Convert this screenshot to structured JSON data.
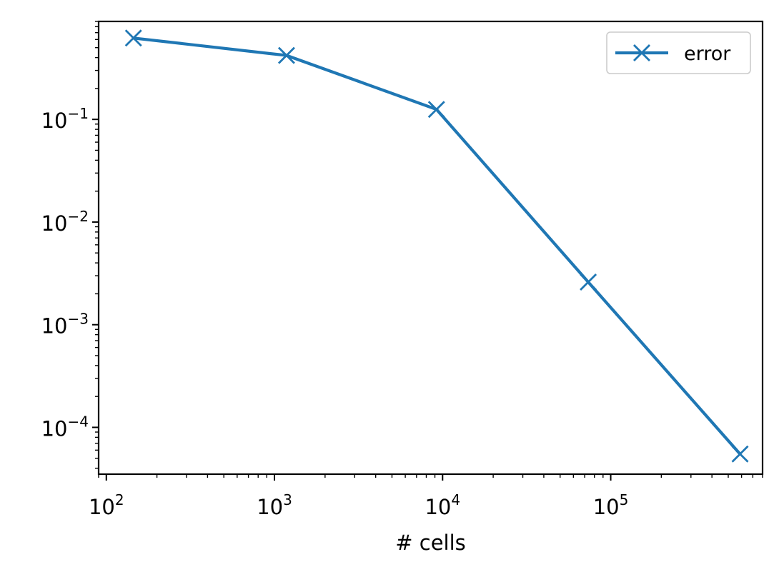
{
  "chart_data": {
    "type": "line",
    "xscale": "log",
    "yscale": "log",
    "xlim": [
      90,
      800000
    ],
    "ylim": [
      3.5e-05,
      0.9
    ],
    "xlabel": "# cells",
    "ylabel": "",
    "title": "",
    "grid": false,
    "legend_position": "top-right",
    "x_ticks": [
      {
        "value": 100,
        "base": "10",
        "exp": "2"
      },
      {
        "value": 1000,
        "base": "10",
        "exp": "3"
      },
      {
        "value": 10000,
        "base": "10",
        "exp": "4"
      },
      {
        "value": 100000,
        "base": "10",
        "exp": "5"
      }
    ],
    "y_ticks": [
      {
        "value": 0.1,
        "base": "10",
        "exp": "−1"
      },
      {
        "value": 0.01,
        "base": "10",
        "exp": "−2"
      },
      {
        "value": 0.001,
        "base": "10",
        "exp": "−3"
      },
      {
        "value": 0.0001,
        "base": "10",
        "exp": "−4"
      }
    ],
    "series": [
      {
        "name": "error",
        "color": "#1f77b4",
        "marker": "x",
        "x": [
          145,
          1180,
          9200,
          73500,
          588000
        ],
        "y": [
          0.62,
          0.42,
          0.125,
          0.0026,
          5.5e-05
        ]
      }
    ]
  }
}
